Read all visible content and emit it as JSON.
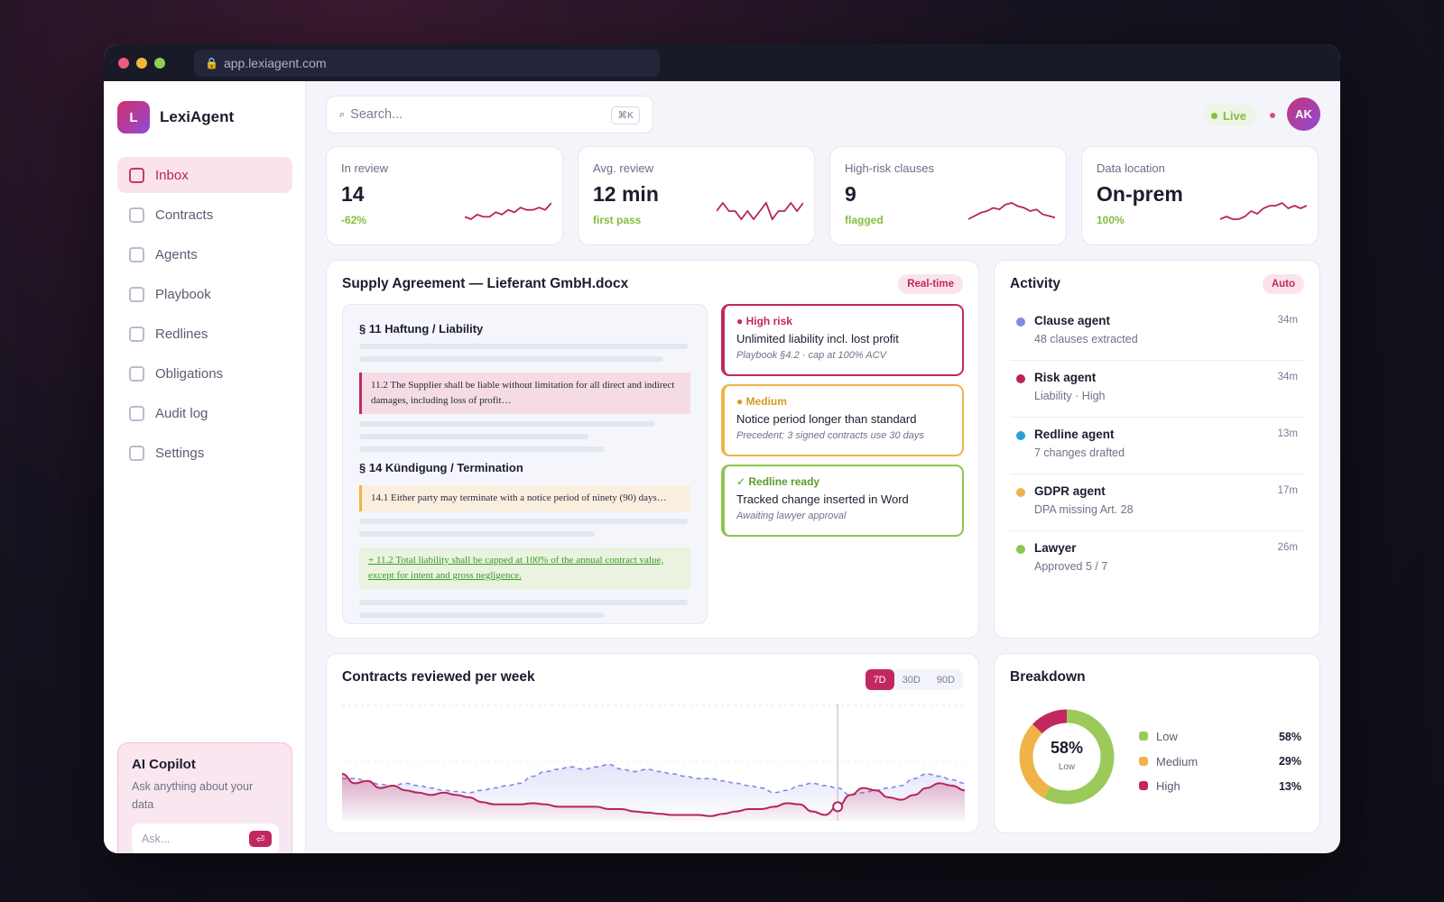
{
  "browser": {
    "url": "app.lexiagent.com"
  },
  "brand": {
    "logo_letter": "L",
    "name": "LexiAgent"
  },
  "sidebar": {
    "items": [
      {
        "label": "Inbox",
        "active": true
      },
      {
        "label": "Contracts"
      },
      {
        "label": "Agents"
      },
      {
        "label": "Playbook"
      },
      {
        "label": "Redlines"
      },
      {
        "label": "Obligations"
      },
      {
        "label": "Audit log"
      },
      {
        "label": "Settings"
      }
    ]
  },
  "copilot": {
    "title": "AI Copilot",
    "subtitle": "Ask anything about your data",
    "placeholder": "Ask...",
    "send_icon": "⏎"
  },
  "header": {
    "search_placeholder": "Search...",
    "search_shortcut": "⌘K",
    "status": "Live",
    "avatar_initials": "AK"
  },
  "kpis": [
    {
      "label": "In review",
      "value": "14",
      "sub": "-62%",
      "spark": [
        5,
        4,
        6,
        5,
        5,
        7,
        6,
        8,
        7,
        9,
        8,
        8,
        9,
        8,
        11
      ]
    },
    {
      "label": "Avg. review",
      "value": "12 min",
      "sub": "first pass",
      "spark": [
        8,
        9,
        8,
        8,
        7,
        8,
        7,
        8,
        9,
        7,
        8,
        8,
        9,
        8,
        9
      ]
    },
    {
      "label": "High-risk clauses",
      "value": "9",
      "sub": "flagged",
      "spark": [
        4,
        6,
        8,
        9,
        11,
        10,
        13,
        14,
        12,
        11,
        9,
        10,
        7,
        6,
        5
      ]
    },
    {
      "label": "Data location",
      "value": "On-prem",
      "sub": "100%",
      "spark": [
        4,
        5,
        4,
        4,
        5,
        7,
        6,
        8,
        9,
        9,
        10,
        8,
        9,
        8,
        9
      ]
    }
  ],
  "document": {
    "title": "Supply Agreement — Lieferant GmbH.docx",
    "badge": "Real-time",
    "section1": "§ 11 Haftung / Liability",
    "clause_risk": "11.2 The Supplier shall be liable without limitation for all direct and indirect damages, including loss of profit…",
    "section2": "§ 14 Kündigung / Termination",
    "clause_medium": "14.1 Either party may terminate with a notice period of ninety (90) days…",
    "clause_redline": "+ 11.2 Total liability shall be capped at 100% of the annual contract value, except for intent and gross negligence."
  },
  "findings": [
    {
      "tag": "● High risk",
      "title": "Unlimited liability incl. lost profit",
      "note": "Playbook §4.2 · cap at 100% ACV"
    },
    {
      "tag": "● Medium",
      "title": "Notice period longer than standard",
      "note": "Precedent: 3 signed contracts use 30 days"
    },
    {
      "tag": "✓ Redline ready",
      "title": "Tracked change inserted in Word",
      "note": "Awaiting lawyer approval"
    }
  ],
  "activity": {
    "title": "Activity",
    "badge": "Auto",
    "items": [
      {
        "name": "Clause agent",
        "desc": "48 clauses extracted",
        "time": "34m",
        "color": "#8088e6"
      },
      {
        "name": "Risk agent",
        "desc": "Liability · High",
        "time": "34m",
        "color": "#b8245a"
      },
      {
        "name": "Redline agent",
        "desc": "7 changes drafted",
        "time": "13m",
        "color": "#2a9fd6"
      },
      {
        "name": "GDPR agent",
        "desc": "DPA missing Art. 28",
        "time": "17m",
        "color": "#f0b34a"
      },
      {
        "name": "Lawyer",
        "desc": "Approved 5 / 7",
        "time": "26m",
        "color": "#8cc54f"
      }
    ]
  },
  "chart_data": {
    "type": "area",
    "title": "Contracts reviewed per week",
    "ranges": [
      "7D",
      "30D",
      "90D"
    ],
    "selected_range": "7D",
    "ylim": [
      0,
      100
    ],
    "highlight_index": 39,
    "series": [
      {
        "values": [
          40,
          32,
          34,
          28,
          30,
          26,
          24,
          22,
          24,
          22,
          20,
          16,
          14,
          14,
          14,
          15,
          14,
          12,
          12,
          12,
          12,
          10,
          10,
          8,
          7,
          6,
          5,
          5,
          5,
          4,
          6,
          8,
          10,
          10,
          12,
          15,
          14,
          8,
          5,
          12,
          22,
          28,
          26,
          20,
          18,
          22,
          28,
          32,
          30,
          26
        ]
      },
      {
        "values": [
          36,
          36,
          34,
          31,
          30,
          32,
          30,
          28,
          26,
          25,
          24,
          26,
          28,
          30,
          32,
          38,
          42,
          44,
          46,
          44,
          46,
          48,
          44,
          42,
          44,
          42,
          40,
          38,
          36,
          36,
          34,
          32,
          30,
          28,
          24,
          26,
          30,
          32,
          30,
          28,
          22,
          24,
          26,
          28,
          30,
          36,
          40,
          38,
          35,
          32
        ]
      }
    ]
  },
  "breakdown": {
    "title": "Breakdown",
    "center_value": "58%",
    "center_label": "Low",
    "segments": [
      {
        "label": "Low",
        "pct": 58,
        "pct_text": "58%",
        "color": "#9bc95a"
      },
      {
        "label": "Medium",
        "pct": 29,
        "pct_text": "29%",
        "color": "#f0b34a"
      },
      {
        "label": "High",
        "pct": 13,
        "pct_text": "13%",
        "color": "#c2285f"
      }
    ]
  }
}
